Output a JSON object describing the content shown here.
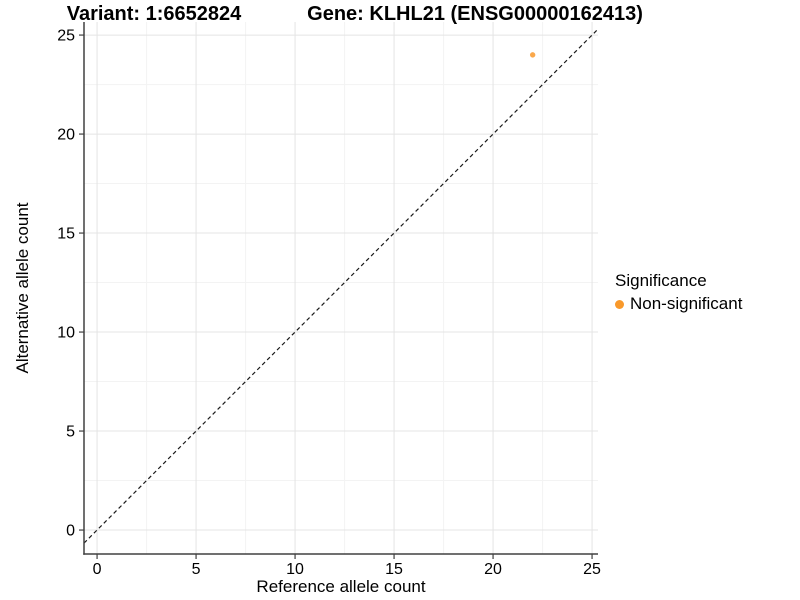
{
  "titles": {
    "variant": "Variant: 1:6652824",
    "gene": "Gene: KLHL21 (ENSG00000162413)"
  },
  "chart_data": {
    "type": "scatter",
    "title": "Variant: 1:6652824   Gene: KLHL21 (ENSG00000162413)",
    "xlabel": "Reference allele count",
    "ylabel": "Alternative allele count",
    "x_axis": {
      "tick_labels": [
        "0",
        "5",
        "10",
        "15",
        "20",
        "25"
      ],
      "tick_values": [
        0,
        5,
        10,
        15,
        20,
        25
      ],
      "minor_tick_values": [
        2.5,
        7.5,
        12.5,
        17.5,
        22.5
      ],
      "range": [
        -0.66,
        25.3
      ]
    },
    "y_axis": {
      "tick_labels": [
        "0",
        "5",
        "10",
        "15",
        "20",
        "25"
      ],
      "tick_values": [
        0,
        5,
        10,
        15,
        20,
        25
      ],
      "minor_tick_values": [
        2.5,
        7.5,
        12.5,
        17.5,
        22.5
      ],
      "range": [
        -1.21,
        25.66
      ]
    },
    "series": [
      {
        "name": "Non-significant",
        "points": [
          {
            "x": 22,
            "y": 24
          }
        ],
        "color": "#F9992B",
        "point_radius": 2.7,
        "point_opacity": 0.85
      }
    ],
    "identity_line": {
      "show": true,
      "dash": "4 3",
      "color": "#1A1A1A",
      "width": 1.2
    },
    "grid": {
      "major_color": "#E4E4E4",
      "minor_color": "#F3F3F3"
    },
    "axis_line_color": "#404040",
    "tick_label_size": 16,
    "legend": {
      "title": "Significance",
      "items": [
        {
          "label": "Non-significant",
          "color": "#F9992B"
        }
      ],
      "position": "right"
    }
  }
}
